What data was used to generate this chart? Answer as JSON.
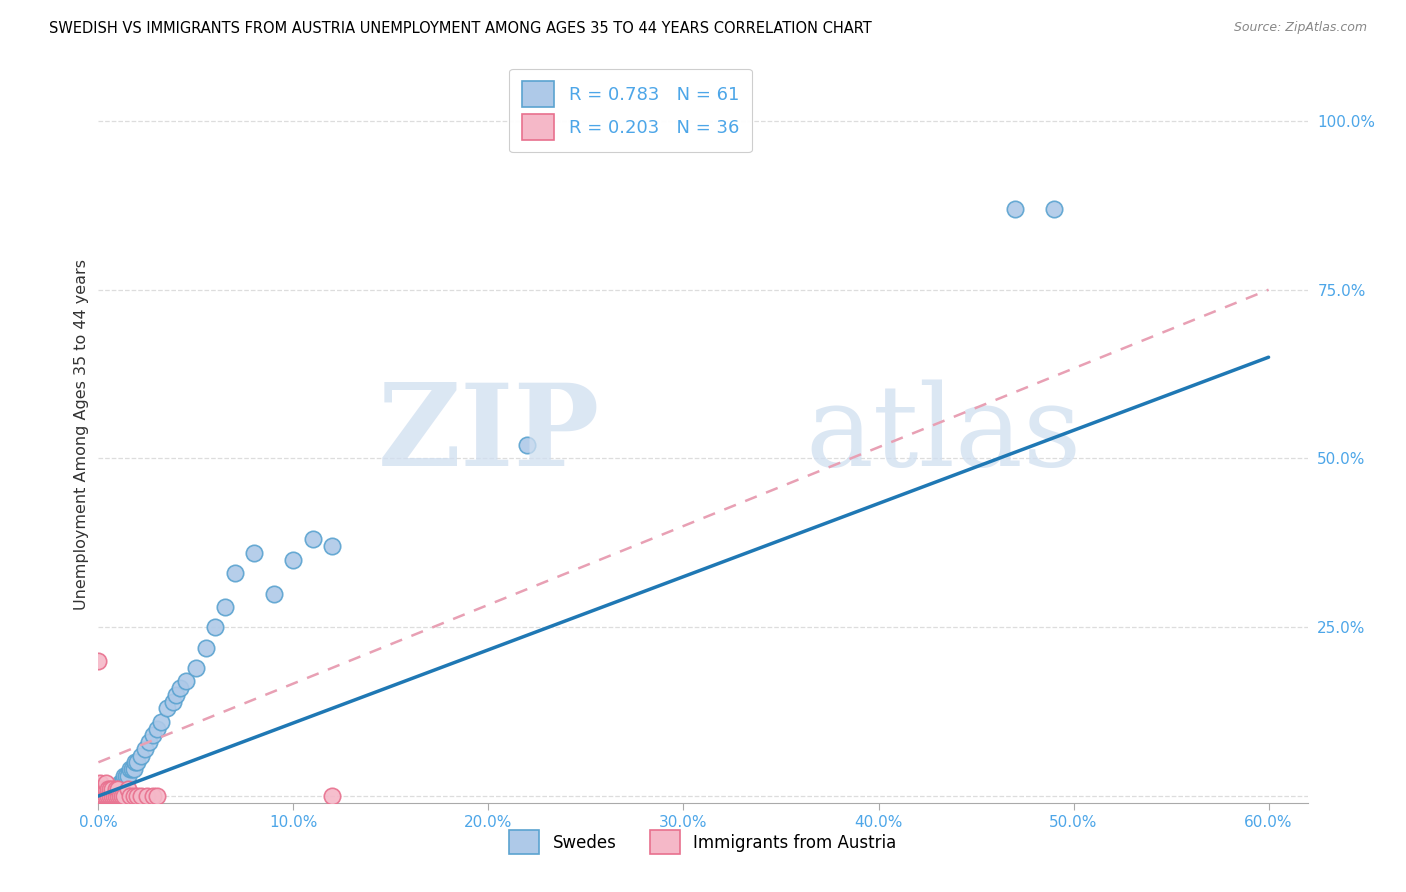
{
  "title": "SWEDISH VS IMMIGRANTS FROM AUSTRIA UNEMPLOYMENT AMONG AGES 35 TO 44 YEARS CORRELATION CHART",
  "source": "Source: ZipAtlas.com",
  "ylabel_label": "Unemployment Among Ages 35 to 44 years",
  "xlim": [
    0.0,
    0.62
  ],
  "ylim": [
    -0.01,
    1.08
  ],
  "xtick_vals": [
    0.0,
    0.1,
    0.2,
    0.3,
    0.4,
    0.5,
    0.6
  ],
  "ytick_vals": [
    0.0,
    0.25,
    0.5,
    0.75,
    1.0
  ],
  "swedes_color": "#aec9e8",
  "swedes_edge": "#5ba3d0",
  "austria_color": "#f5b8c8",
  "austria_edge": "#e8708e",
  "trendline_swedes": "#1f78b4",
  "trendline_austria": "#e8a0b4",
  "watermark_color": "#d0dff0",
  "grid_color": "#dddddd",
  "axis_color": "#aaaaaa",
  "label_color": "#4da6e8",
  "text_color": "#333333",
  "swedes_x": [
    0.0,
    0.001,
    0.001,
    0.002,
    0.002,
    0.003,
    0.003,
    0.003,
    0.004,
    0.004,
    0.005,
    0.005,
    0.005,
    0.006,
    0.006,
    0.007,
    0.007,
    0.007,
    0.008,
    0.008,
    0.008,
    0.009,
    0.009,
    0.01,
    0.01,
    0.011,
    0.011,
    0.012,
    0.012,
    0.013,
    0.014,
    0.015,
    0.016,
    0.017,
    0.018,
    0.019,
    0.02,
    0.022,
    0.024,
    0.026,
    0.028,
    0.03,
    0.032,
    0.035,
    0.038,
    0.04,
    0.042,
    0.045,
    0.05,
    0.055,
    0.06,
    0.065,
    0.07,
    0.08,
    0.09,
    0.1,
    0.11,
    0.12,
    0.22,
    0.47,
    0.49
  ],
  "swedes_y": [
    0.0,
    0.0,
    0.0,
    0.0,
    0.0,
    0.0,
    0.0,
    0.0,
    0.0,
    0.0,
    0.0,
    0.0,
    0.0,
    0.0,
    0.0,
    0.0,
    0.0,
    0.0,
    0.0,
    0.0,
    0.0,
    0.0,
    0.0,
    0.01,
    0.01,
    0.01,
    0.02,
    0.02,
    0.02,
    0.03,
    0.03,
    0.03,
    0.04,
    0.04,
    0.04,
    0.05,
    0.05,
    0.06,
    0.07,
    0.08,
    0.09,
    0.1,
    0.11,
    0.13,
    0.14,
    0.15,
    0.16,
    0.17,
    0.19,
    0.22,
    0.25,
    0.28,
    0.33,
    0.36,
    0.3,
    0.35,
    0.38,
    0.37,
    0.52,
    0.87,
    0.87
  ],
  "austria_x": [
    0.0,
    0.0,
    0.0,
    0.001,
    0.001,
    0.001,
    0.002,
    0.002,
    0.003,
    0.003,
    0.004,
    0.004,
    0.004,
    0.005,
    0.005,
    0.006,
    0.006,
    0.007,
    0.007,
    0.008,
    0.009,
    0.009,
    0.01,
    0.01,
    0.011,
    0.012,
    0.013,
    0.015,
    0.016,
    0.018,
    0.02,
    0.022,
    0.025,
    0.028,
    0.03,
    0.12
  ],
  "austria_y": [
    0.2,
    0.0,
    0.01,
    0.0,
    0.01,
    0.02,
    0.0,
    0.01,
    0.0,
    0.01,
    0.0,
    0.01,
    0.02,
    0.0,
    0.01,
    0.0,
    0.01,
    0.0,
    0.01,
    0.0,
    0.0,
    0.01,
    0.0,
    0.01,
    0.0,
    0.0,
    0.0,
    0.01,
    0.0,
    0.0,
    0.0,
    0.0,
    0.0,
    0.0,
    0.0,
    0.0
  ],
  "trendline_sw_x0": 0.0,
  "trendline_sw_y0": 0.0,
  "trendline_sw_x1": 0.6,
  "trendline_sw_y1": 0.65,
  "trendline_at_x0": 0.0,
  "trendline_at_y0": 0.05,
  "trendline_at_x1": 0.6,
  "trendline_at_y1": 0.75
}
